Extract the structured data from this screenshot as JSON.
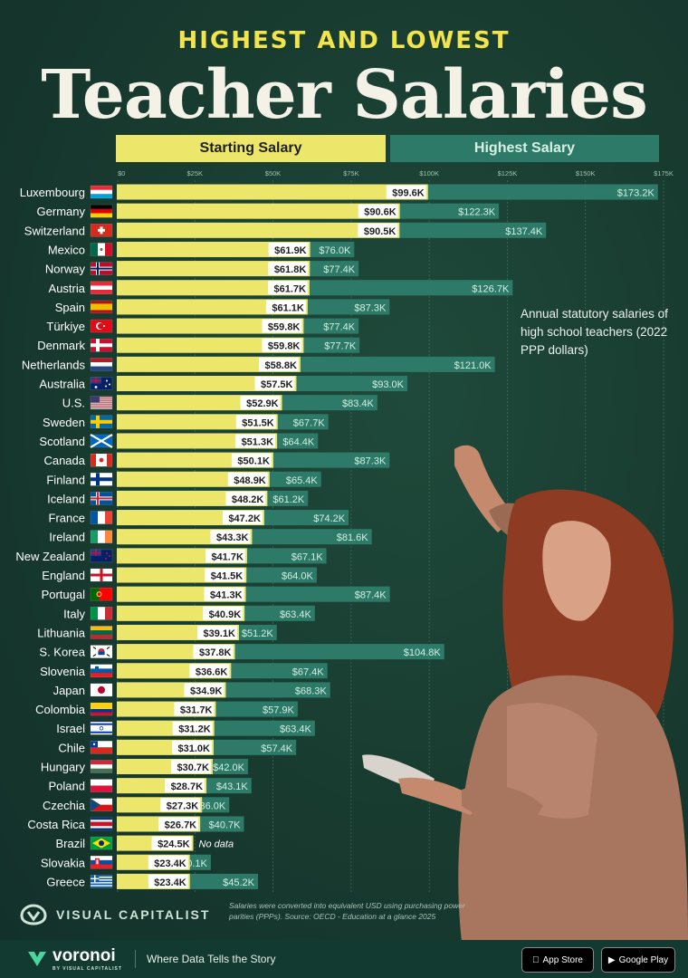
{
  "header": {
    "subtitle": "HIGHEST AND LOWEST",
    "title": "Teacher Salaries"
  },
  "legend": {
    "starting": "Starting Salary",
    "highest": "Highest Salary"
  },
  "note": "Annual statutory salaries of high school teachers (2022 PPP dollars)",
  "source": "Salaries were converted into equivalent USD using purchasing power parities (PPPs). Source: OECD - Education at a glance 2025",
  "branding": {
    "publisher": "VISUAL CAPITALIST",
    "voronoi": "voronoi",
    "voronoi_sub": "BY VISUAL CAPITALIST",
    "tagline": "Where Data Tells the Story",
    "app_store": "App Store",
    "google_play": "Google Play"
  },
  "colors": {
    "starting": "#ece66a",
    "highest": "#2e7a68",
    "background": "#1b3f33"
  },
  "chart_data": {
    "type": "bar",
    "orientation": "horizontal",
    "xlim": [
      0,
      175000
    ],
    "x_ticks": [
      0,
      25000,
      50000,
      75000,
      100000,
      125000,
      150000,
      175000
    ],
    "x_tick_labels": [
      "$0",
      "$25K",
      "$50K",
      "$75K",
      "$100K",
      "$125K",
      "$150K",
      "$175K"
    ],
    "categories": [
      "Luxembourg",
      "Germany",
      "Switzerland",
      "Mexico",
      "Norway",
      "Austria",
      "Spain",
      "Türkiye",
      "Denmark",
      "Netherlands",
      "Australia",
      "U.S.",
      "Sweden",
      "Scotland",
      "Canada",
      "Finland",
      "Iceland",
      "France",
      "Ireland",
      "New Zealand",
      "England",
      "Portugal",
      "Italy",
      "Lithuania",
      "S. Korea",
      "Slovenia",
      "Japan",
      "Colombia",
      "Israel",
      "Chile",
      "Hungary",
      "Poland",
      "Czechia",
      "Costa Rica",
      "Brazil",
      "Slovakia",
      "Greece"
    ],
    "series": [
      {
        "name": "Starting Salary",
        "values": [
          99.6,
          90.6,
          90.5,
          61.9,
          61.8,
          61.7,
          61.1,
          59.8,
          59.8,
          58.8,
          57.5,
          52.9,
          51.5,
          51.3,
          50.1,
          48.9,
          48.2,
          47.2,
          43.3,
          41.7,
          41.5,
          41.3,
          40.9,
          39.1,
          37.8,
          36.6,
          34.9,
          31.7,
          31.2,
          31.0,
          30.7,
          28.7,
          27.3,
          26.7,
          24.5,
          23.4,
          23.4
        ],
        "labels": [
          "$99.6K",
          "$90.6K",
          "$90.5K",
          "$61.9K",
          "$61.8K",
          "$61.7K",
          "$61.1K",
          "$59.8K",
          "$59.8K",
          "$58.8K",
          "$57.5K",
          "$52.9K",
          "$51.5K",
          "$51.3K",
          "$50.1K",
          "$48.9K",
          "$48.2K",
          "$47.2K",
          "$43.3K",
          "$41.7K",
          "$41.5K",
          "$41.3K",
          "$40.9K",
          "$39.1K",
          "$37.8K",
          "$36.6K",
          "$34.9K",
          "$31.7K",
          "$31.2K",
          "$31.0K",
          "$30.7K",
          "$28.7K",
          "$27.3K",
          "$26.7K",
          "$24.5K",
          "$23.4K",
          "$23.4K"
        ]
      },
      {
        "name": "Highest Salary",
        "values": [
          173.2,
          122.3,
          137.4,
          76.0,
          77.4,
          126.7,
          87.3,
          77.4,
          77.7,
          121.0,
          93.0,
          83.4,
          67.7,
          64.4,
          87.3,
          65.4,
          61.2,
          74.2,
          81.6,
          67.1,
          64.0,
          87.4,
          63.4,
          51.2,
          104.8,
          67.4,
          68.3,
          57.9,
          63.4,
          57.4,
          42.0,
          43.1,
          36.0,
          40.7,
          null,
          30.1,
          45.2
        ],
        "labels": [
          "$173.2K",
          "$122.3K",
          "$137.4K",
          "$76.0K",
          "$77.4K",
          "$126.7K",
          "$87.3K",
          "$77.4K",
          "$77.7K",
          "$121.0K",
          "$93.0K",
          "$83.4K",
          "$67.7K",
          "$64.4K",
          "$87.3K",
          "$65.4K",
          "$61.2K",
          "$74.2K",
          "$81.6K",
          "$67.1K",
          "$64.0K",
          "$87.4K",
          "$63.4K",
          "$51.2K",
          "$104.8K",
          "$67.4K",
          "$68.3K",
          "$57.9K",
          "$63.4K",
          "$57.4K",
          "$42.0K",
          "$43.1K",
          "$36.0K",
          "$40.7K",
          "No data",
          "$30.1K",
          "$45.2K"
        ]
      }
    ],
    "value_units": "thousands USD (2022 PPP)",
    "flags": [
      "lu",
      "de",
      "ch",
      "mx",
      "no",
      "at",
      "es",
      "tr",
      "dk",
      "nl",
      "au",
      "us",
      "se",
      "scot",
      "ca",
      "fi",
      "is",
      "fr",
      "ie",
      "nz",
      "eng",
      "pt",
      "it",
      "lt",
      "kr",
      "si",
      "jp",
      "co",
      "il",
      "cl",
      "hu",
      "pl",
      "cz",
      "cr",
      "br",
      "sk",
      "gr"
    ]
  }
}
